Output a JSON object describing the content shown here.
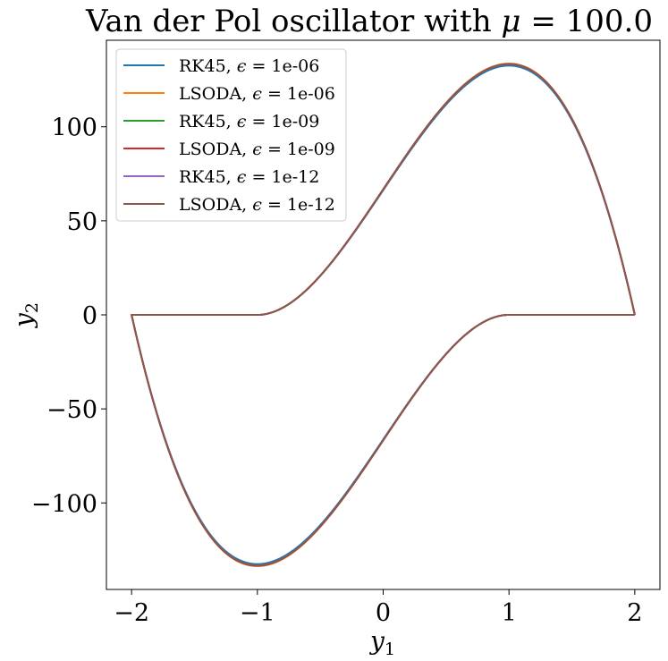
{
  "chart_data": {
    "type": "line",
    "title": {
      "prefix": "Van der Pol oscillator with ",
      "symbol": "μ",
      "suffix": " = 100.0"
    },
    "xlabel": {
      "base": "y",
      "sub": "1"
    },
    "ylabel": {
      "base": "y",
      "sub": "2"
    },
    "xlim": [
      -2.2,
      2.2
    ],
    "ylim": [
      -146,
      146
    ],
    "xticks": [
      {
        "value": -2,
        "label": "−2"
      },
      {
        "value": -1,
        "label": "−1"
      },
      {
        "value": 0,
        "label": "0"
      },
      {
        "value": 1,
        "label": "1"
      },
      {
        "value": 2,
        "label": "2"
      }
    ],
    "yticks": [
      {
        "value": -100,
        "label": "−100"
      },
      {
        "value": -50,
        "label": "−50"
      },
      {
        "value": 0,
        "label": "0"
      },
      {
        "value": 50,
        "label": "50"
      },
      {
        "value": 100,
        "label": "100"
      }
    ],
    "grid": false,
    "legend_position": "top-left",
    "limit_cycle": {
      "x": [
        2.0,
        1.0,
        0.5,
        0.0,
        -0.5,
        -1.0,
        -1.5,
        -2.0
      ],
      "y": [
        0.0,
        133.3,
        116.7,
        66.7,
        16.7,
        0.0,
        0.0,
        0.0
      ]
    },
    "series": [
      {
        "name": "RK45, ϵ = 1e-06",
        "label_method": "RK45,",
        "label_symbol": "ϵ",
        "label_tol": " = 1e-06",
        "color": "#1f77b4",
        "amplitude": 132.5
      },
      {
        "name": "LSODA, ϵ = 1e-06",
        "label_method": "LSODA,",
        "label_symbol": "ϵ",
        "label_tol": " = 1e-06",
        "color": "#ff7f0e",
        "amplitude": 133.6
      },
      {
        "name": "RK45, ϵ = 1e-09",
        "label_method": "RK45,",
        "label_symbol": "ϵ",
        "label_tol": " = 1e-09",
        "color": "#2ca02c",
        "amplitude": 133.3
      },
      {
        "name": "LSODA, ϵ = 1e-09",
        "label_method": "LSODA,",
        "label_symbol": "ϵ",
        "label_tol": " = 1e-09",
        "color": "#d62728",
        "amplitude": 133.4
      },
      {
        "name": "RK45, ϵ = 1e-12",
        "label_method": "RK45,",
        "label_symbol": "ϵ",
        "label_tol": " = 1e-12",
        "color": "#9467bd",
        "amplitude": 133.3
      },
      {
        "name": "LSODA, ϵ = 1e-12",
        "label_method": "LSODA,",
        "label_symbol": "ϵ",
        "label_tol": " = 1e-12",
        "color": "#8c564b",
        "amplitude": 133.3
      }
    ]
  }
}
